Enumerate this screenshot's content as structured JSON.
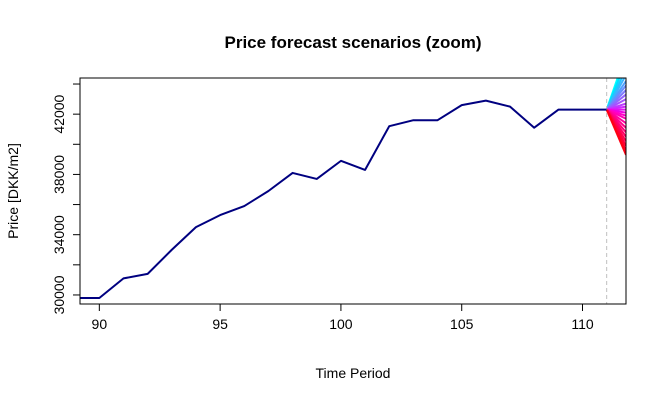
{
  "chart_data": {
    "type": "line",
    "title": "Price forecast scenarios (zoom)",
    "xlabel": "Time Period",
    "ylabel": "Price [DKK/m2]",
    "xlim": [
      89.2,
      111.8
    ],
    "ylim": [
      29400,
      44400
    ],
    "x_ticks": [
      90,
      95,
      100,
      105,
      110
    ],
    "y_ticks": [
      30000,
      34000,
      38000,
      42000
    ],
    "y_minor_ticks": [
      32000,
      36000,
      40000,
      44000
    ],
    "grid": false,
    "forecast_start": 111,
    "history_color": "#000080",
    "divider_color": "#c0c0c0",
    "series": [
      {
        "x": [
          89,
          90,
          91,
          92,
          93,
          94,
          95,
          96,
          97,
          98,
          99,
          100,
          101,
          102,
          103,
          104,
          105,
          106,
          107,
          108,
          109,
          110,
          111
        ],
        "values": [
          29800,
          29800,
          31100,
          31400,
          33000,
          34500,
          35300,
          35900,
          36900,
          38100,
          37700,
          38900,
          38300,
          41200,
          41600,
          41600,
          42600,
          42900,
          42500,
          41100,
          42300,
          42300,
          42300
        ]
      }
    ],
    "scenario_origin": [
      111,
      42300
    ],
    "scenario_end_x": 111.8,
    "scenario_end_values": [
      46000,
      45500,
      45000,
      44600,
      44200,
      43900,
      43600,
      43300,
      43000,
      42700,
      42500,
      42300,
      42100,
      41900,
      41700,
      41400,
      41100,
      40800,
      40500,
      40200,
      39900,
      39600,
      39300
    ],
    "scenario_colors": [
      "#00ffff",
      "#00e0ff",
      "#1ec8ff",
      "#3cb4ff",
      "#4fa0ff",
      "#6a8cff",
      "#7f78ff",
      "#9464ff",
      "#a850ff",
      "#bc3cff",
      "#d028ff",
      "#e014f0",
      "#f000e0",
      "#ff00c8",
      "#ff00b4",
      "#ff00a0",
      "#ff008c",
      "#ff0078",
      "#ff0064",
      "#ff0050",
      "#ff003c",
      "#ff0028",
      "#ff0014"
    ]
  }
}
